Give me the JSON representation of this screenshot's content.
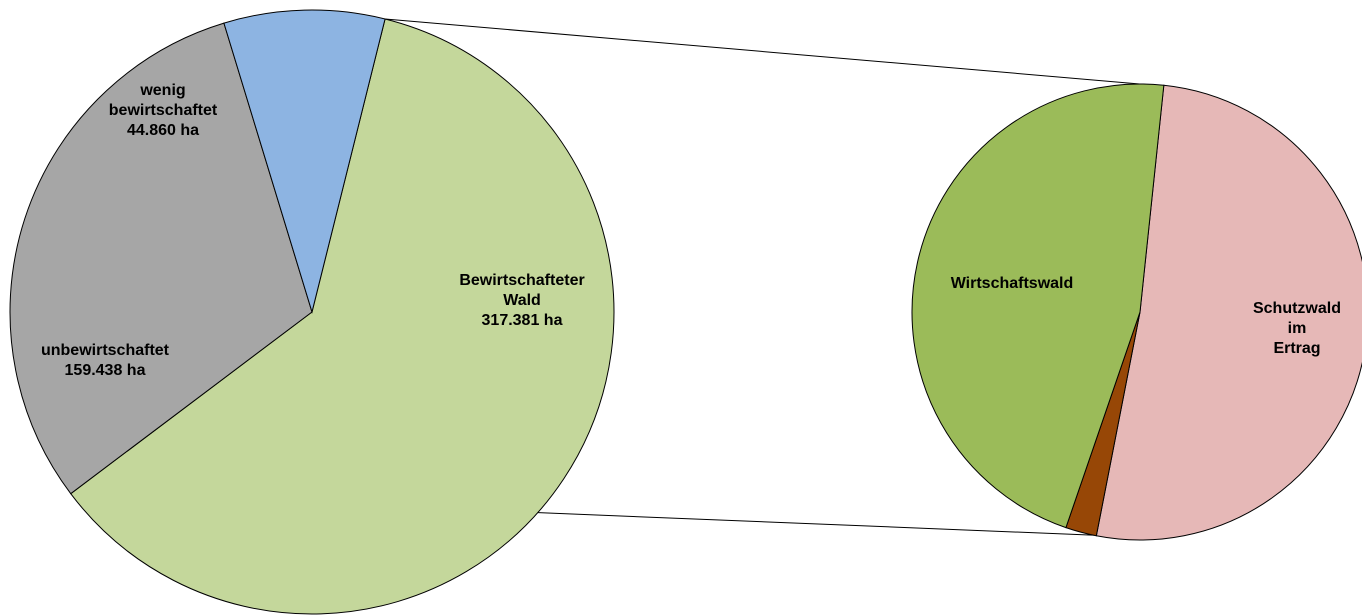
{
  "chart_data": [
    {
      "type": "pie",
      "unit": "ha",
      "slices": [
        {
          "name": "Bewirtschafteter Wald",
          "value": 317381,
          "value_label": "317.381 ha",
          "color": "#c4d79b",
          "label_lines": [
            "Bewirtschafteter",
            "Wald",
            "317.381 ha"
          ]
        },
        {
          "name": "unbewirtschaftet",
          "value": 159438,
          "value_label": "159.438 ha",
          "color": "#a6a6a6",
          "label_lines": [
            "unbewirtschaftet",
            "159.438 ha"
          ]
        },
        {
          "name": "wenig bewirtschaftet",
          "value": 44860,
          "value_label": "44.860 ha",
          "color": "#8db4e2",
          "label_lines": [
            "wenig",
            "bewirtschaftet",
            "44.860 ha"
          ]
        }
      ]
    },
    {
      "type": "pie",
      "breakdown_of": "Bewirtschafteter Wald",
      "slices": [
        {
          "name": "Schutzwald im Ertrag",
          "share": 0.514,
          "color": "#e6b8b7",
          "label_lines": [
            "Schutzwald",
            "im",
            "Ertrag"
          ]
        },
        {
          "name": "",
          "share": 0.022,
          "color": "#974706",
          "label_lines": []
        },
        {
          "name": "Wirtschaftswald",
          "share": 0.464,
          "color": "#9bbb59",
          "label_lines": [
            "Wirtschaftswald"
          ]
        }
      ]
    }
  ]
}
